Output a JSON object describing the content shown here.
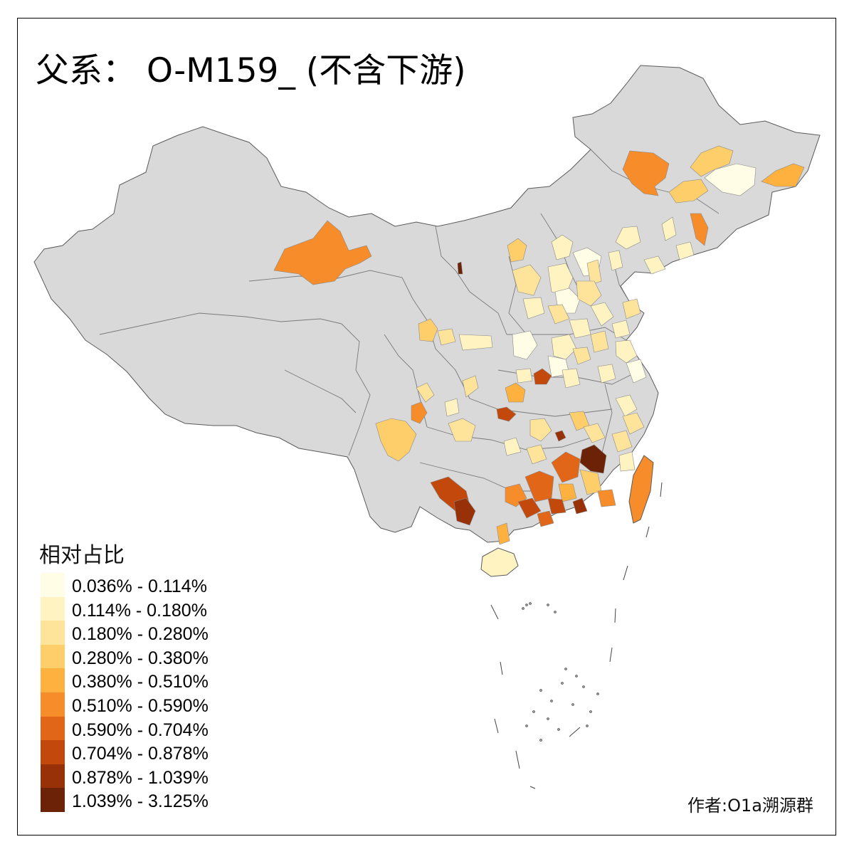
{
  "title": "父系： O-M159_ (不含下游)",
  "legend": {
    "title": "相对占比",
    "items": [
      {
        "label": "0.036% - 0.114%",
        "color": "#fffde6"
      },
      {
        "label": "0.114% - 0.180%",
        "color": "#fff3c2"
      },
      {
        "label": "0.180% - 0.280%",
        "color": "#fee49a"
      },
      {
        "label": "0.280% - 0.380%",
        "color": "#fece6a"
      },
      {
        "label": "0.380% - 0.510%",
        "color": "#feb13f"
      },
      {
        "label": "0.510% - 0.590%",
        "color": "#f68d2a"
      },
      {
        "label": "0.590% - 0.704%",
        "color": "#e26617"
      },
      {
        "label": "0.704% - 0.878%",
        "color": "#c2480c"
      },
      {
        "label": "0.878% - 1.039%",
        "color": "#983107"
      },
      {
        "label": "1.039% - 3.125%",
        "color": "#6b2206"
      }
    ]
  },
  "author": "作者:O1a溯源群",
  "colors": {
    "land": "#d9d9d9",
    "border": "#6e6e6e",
    "frame": "#000000"
  }
}
